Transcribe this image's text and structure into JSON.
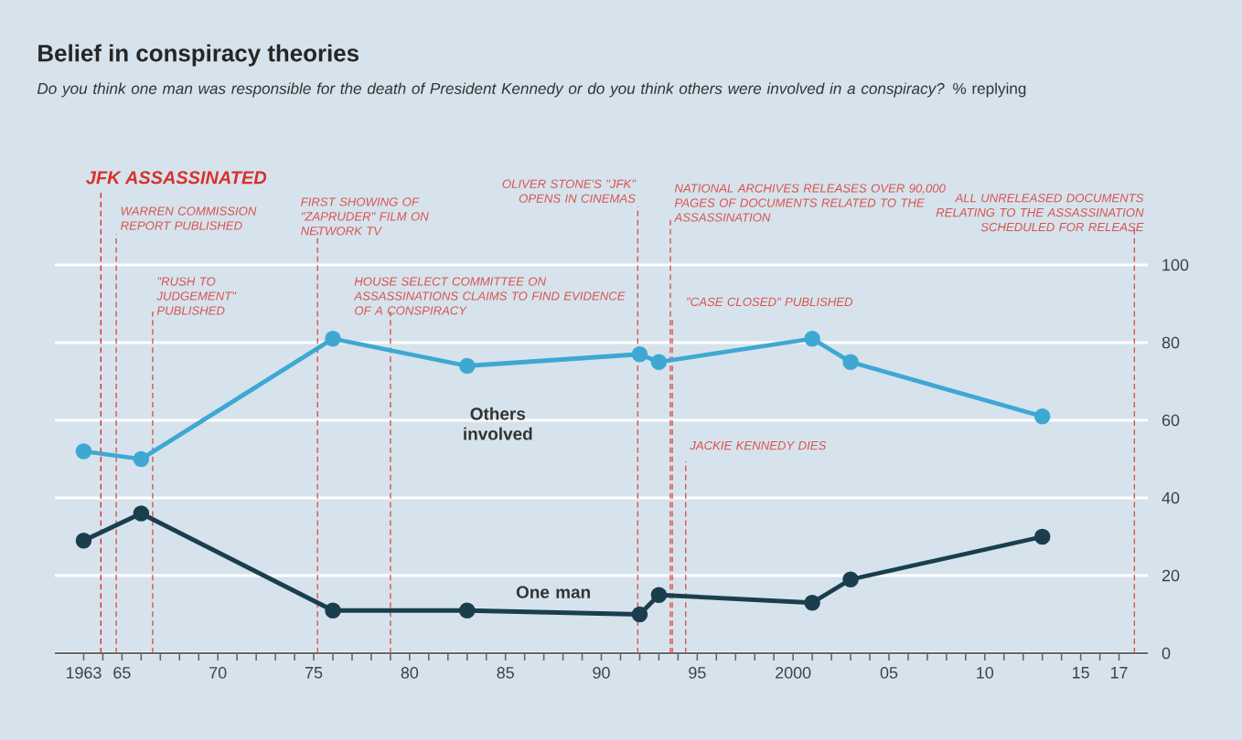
{
  "chart_data": {
    "type": "line",
    "title": "Belief in conspiracy theories",
    "subtitle": "*Do you think one man was responsible for the death of President Kennedy or do you think others were involved in a conspiracy?* % replying",
    "x": [
      1963,
      1966,
      1976,
      1983,
      1992,
      1993,
      2001,
      2003,
      2013
    ],
    "series": [
      {
        "name": "Others involved",
        "color": "#3ea8d3",
        "values": [
          52,
          50,
          81,
          74,
          77,
          75,
          81,
          75,
          61
        ]
      },
      {
        "name": "One man",
        "color": "#1a3e4e",
        "values": [
          29,
          36,
          11,
          11,
          10,
          15,
          13,
          19,
          30
        ]
      }
    ],
    "xlim": [
      1961.5,
      2018.5
    ],
    "xticks": [
      1963,
      {
        "value": 1964,
        "label": null
      },
      {
        "value": 1965,
        "label": "65"
      },
      {
        "value": 1966,
        "label": null
      },
      {
        "value": 1967,
        "label": null
      },
      {
        "value": 1968,
        "label": null
      },
      {
        "value": 1969,
        "label": null
      },
      {
        "value": 1970,
        "label": "70"
      },
      {
        "value": 1971,
        "label": null
      },
      {
        "value": 1972,
        "label": null
      },
      {
        "value": 1973,
        "label": null
      },
      {
        "value": 1974,
        "label": null
      },
      {
        "value": 1975,
        "label": "75"
      },
      {
        "value": 1976,
        "label": null
      },
      {
        "value": 1977,
        "label": null
      },
      {
        "value": 1978,
        "label": null
      },
      {
        "value": 1979,
        "label": null
      },
      {
        "value": 1980,
        "label": "80"
      },
      {
        "value": 1981,
        "label": null
      },
      {
        "value": 1982,
        "label": null
      },
      {
        "value": 1983,
        "label": null
      },
      {
        "value": 1984,
        "label": null
      },
      {
        "value": 1985,
        "label": "85"
      },
      {
        "value": 1986,
        "label": null
      },
      {
        "value": 1987,
        "label": null
      },
      {
        "value": 1988,
        "label": null
      },
      {
        "value": 1989,
        "label": null
      },
      {
        "value": 1990,
        "label": "90"
      },
      {
        "value": 1991,
        "label": null
      },
      {
        "value": 1992,
        "label": null
      },
      {
        "value": 1993,
        "label": null
      },
      {
        "value": 1994,
        "label": null
      },
      {
        "value": 1995,
        "label": "95"
      },
      {
        "value": 1996,
        "label": null
      },
      {
        "value": 1997,
        "label": null
      },
      {
        "value": 1998,
        "label": null
      },
      {
        "value": 1999,
        "label": null
      },
      2000,
      {
        "value": 2001,
        "label": null
      },
      {
        "value": 2002,
        "label": null
      },
      {
        "value": 2003,
        "label": null
      },
      {
        "value": 2004,
        "label": null
      },
      {
        "value": 2005,
        "label": "05"
      },
      {
        "value": 2006,
        "label": null
      },
      {
        "value": 2007,
        "label": null
      },
      {
        "value": 2008,
        "label": null
      },
      {
        "value": 2009,
        "label": null
      },
      {
        "value": 2010,
        "label": "10"
      },
      {
        "value": 2011,
        "label": null
      },
      {
        "value": 2012,
        "label": null
      },
      {
        "value": 2013,
        "label": null
      },
      {
        "value": 2014,
        "label": null
      },
      {
        "value": 2015,
        "label": "15"
      },
      {
        "value": 2016,
        "label": null
      },
      {
        "value": 2017,
        "label": "17"
      }
    ],
    "ylim": [
      0,
      100
    ],
    "yticks": [
      0,
      20,
      40,
      60,
      80,
      100
    ],
    "grid": "y",
    "legend": false,
    "marker": "circle",
    "line_style": "solid",
    "ref_lines": [
      {
        "axis": "x",
        "value": 1963.9,
        "label": "JFK ASSASSINATED",
        "color": "#d9302c",
        "line_style": "dashed"
      },
      {
        "axis": "x",
        "value": 1964.7,
        "label": "WARREN COMMISSION REPORT PUBLISHED",
        "color": "#d9534f",
        "line_style": "dashed"
      },
      {
        "axis": "x",
        "value": 1966.6,
        "label": "\"RUSH TO JUDGEMENT\" PUBLISHED",
        "color": "#d9534f",
        "line_style": "dashed"
      },
      {
        "axis": "x",
        "value": 1975.2,
        "label": "FIRST SHOWING OF \"ZAPRUDER\" FILM ON NETWORK TV",
        "color": "#d9534f",
        "line_style": "dashed"
      },
      {
        "axis": "x",
        "value": 1979,
        "label": "HOUSE SELECT COMMITTEE ON ASSASSINATIONS CLAIMS TO FIND EVIDENCE OF A CONSPIRACY",
        "color": "#d9534f",
        "line_style": "dashed"
      },
      {
        "axis": "x",
        "value": 1991.9,
        "label": "OLIVER STONE'S \"JFK\" OPENS IN CINEMAS",
        "color": "#d9534f",
        "line_style": "dashed"
      },
      {
        "axis": "x",
        "value": 1993.6,
        "label": "NATIONAL ARCHIVES RELEASES OVER 90,000 PAGES OF DOCUMENTS RELATED TO THE ASSASSINATION",
        "color": "#d9534f",
        "line_style": "dashed"
      },
      {
        "axis": "x",
        "value": 1993.7,
        "label": "\"CASE CLOSED\" PUBLISHED",
        "color": "#d9534f",
        "line_style": "dashed"
      },
      {
        "axis": "x",
        "value": 1994.4,
        "label": "JACKIE KENNEDY DIES",
        "color": "#d9534f",
        "line_style": "dashed"
      },
      {
        "axis": "x",
        "value": 2017.8,
        "label": "ALL UNRELEASED DOCUMENTS RELATING TO THE ASSASSINATION SCHEDULED FOR RELEASE",
        "color": "#d9534f",
        "line_style": "dashed"
      }
    ]
  }
}
